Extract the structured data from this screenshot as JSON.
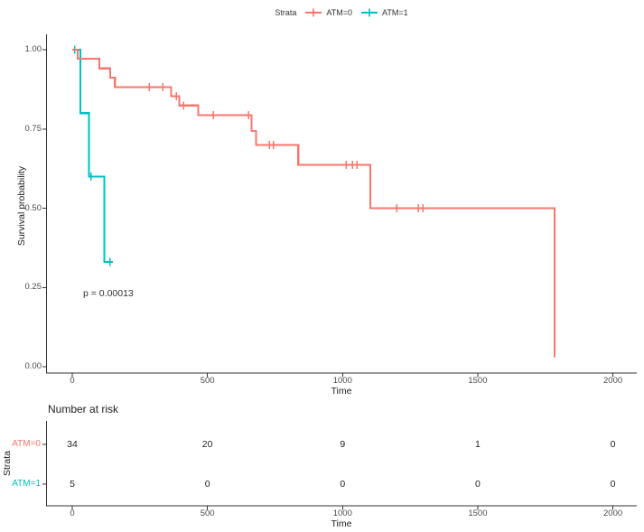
{
  "chart_data": {
    "type": "line",
    "subtype": "kaplan-meier-step",
    "title": "",
    "xlabel": "Time",
    "ylabel": "Survival probability",
    "xlim": [
      0,
      2000
    ],
    "ylim": [
      0.0,
      1.0
    ],
    "grid": false,
    "xticks": [
      0,
      500,
      1000,
      1500,
      2000
    ],
    "xtick_labels": [
      "0",
      "500",
      "1000",
      "1500",
      "2000"
    ],
    "ytick_values": [
      1.0,
      0.75,
      0.5,
      0.25,
      0.0
    ],
    "ytick_labels": [
      "1.00",
      "0.75",
      "0.50",
      "0.25",
      "0.00"
    ],
    "legend": {
      "title": "Strata",
      "position": "top"
    },
    "pvalue_annotation": {
      "text": "p = 0.00013",
      "time": 40,
      "survival": 0.23
    },
    "series": [
      {
        "name": "ATM=0",
        "color": "#F8766D",
        "n_start": 34,
        "steps": [
          {
            "t": 0,
            "s": 1.0
          },
          {
            "t": 20,
            "s": 0.971
          },
          {
            "t": 100,
            "s": 0.941
          },
          {
            "t": 140,
            "s": 0.912
          },
          {
            "t": 158,
            "s": 0.882
          },
          {
            "t": 366,
            "s": 0.853
          },
          {
            "t": 396,
            "s": 0.824
          },
          {
            "t": 466,
            "s": 0.794
          },
          {
            "t": 663,
            "s": 0.744
          },
          {
            "t": 680,
            "s": 0.7
          },
          {
            "t": 836,
            "s": 0.637
          },
          {
            "t": 1103,
            "s": 0.5
          },
          {
            "t": 1784,
            "s": 0.03
          }
        ],
        "censor_marks": [
          [
            285,
            0.882
          ],
          [
            335,
            0.882
          ],
          [
            385,
            0.853
          ],
          [
            411,
            0.824
          ],
          [
            522,
            0.794
          ],
          [
            652,
            0.794
          ],
          [
            730,
            0.7
          ],
          [
            745,
            0.7
          ],
          [
            1013,
            0.637
          ],
          [
            1037,
            0.637
          ],
          [
            1053,
            0.637
          ],
          [
            1201,
            0.5
          ],
          [
            1281,
            0.5
          ],
          [
            1298,
            0.5
          ]
        ],
        "end_time": 1784
      },
      {
        "name": "ATM=1",
        "color": "#00BFC4",
        "n_start": 5,
        "steps": [
          {
            "t": 0,
            "s": 1.0
          },
          {
            "t": 30,
            "s": 0.8
          },
          {
            "t": 62,
            "s": 0.6
          },
          {
            "t": 118,
            "s": 0.33
          }
        ],
        "censor_marks": [
          [
            10,
            1.0
          ],
          [
            70,
            0.6
          ],
          [
            140,
            0.33
          ]
        ],
        "end_time": 150
      }
    ]
  },
  "risk_table": {
    "title": "Number at risk",
    "ylabel": "Strata",
    "xlabel": "Time",
    "times": [
      0,
      500,
      1000,
      1500,
      2000
    ],
    "time_labels": [
      "0",
      "500",
      "1000",
      "1500",
      "2000"
    ],
    "rows": [
      {
        "label": "ATM=0",
        "color": "#F8766D",
        "counts": [
          "34",
          "20",
          "9",
          "1",
          "0"
        ]
      },
      {
        "label": "ATM=1",
        "color": "#00BFC4",
        "counts": [
          "5",
          "0",
          "0",
          "0",
          "0"
        ]
      }
    ]
  },
  "colors": {
    "strata_atm0": "#F8766D",
    "strata_atm1": "#00BFC4",
    "axis_line": "#333333",
    "tick_text": "#4d4d4d"
  }
}
